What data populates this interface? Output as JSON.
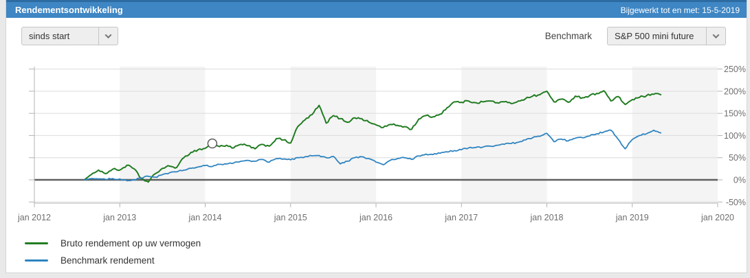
{
  "panel": {
    "title": "Rendementsontwikkeling",
    "updated_label": "Bijgewerkt tot en met: 15-5-2019"
  },
  "controls": {
    "period_select": {
      "value": "sinds start"
    },
    "benchmark_label": "Benchmark",
    "benchmark_select": {
      "value": "S&P 500 mini future"
    }
  },
  "chart_data": {
    "type": "line",
    "title": "Rendementsontwikkeling",
    "xlabel": "",
    "ylabel": "",
    "ylim": [
      -50,
      250
    ],
    "grid": true,
    "legend_position": "bottom-left",
    "x_ticks": [
      "jan 2012",
      "jan 2013",
      "jan 2014",
      "jan 2015",
      "jan 2016",
      "jan 2017",
      "jan 2018",
      "jan 2019",
      "jan 2020"
    ],
    "y_ticks": [
      250,
      200,
      150,
      100,
      50,
      0,
      -50
    ],
    "y_tick_suffix": "%",
    "x_unit": "months_since_jan_2012",
    "x_range_months": [
      0,
      96
    ],
    "band_color": "#f4f4f4",
    "shaded_month_ranges": [
      [
        12,
        24
      ],
      [
        36,
        48
      ],
      [
        60,
        72
      ],
      [
        84,
        96
      ]
    ],
    "zero_line_color": "#606060",
    "series": [
      {
        "name": "Bruto rendement op uw vermogen",
        "color": "#217c21",
        "points": [
          [
            7,
            0
          ],
          [
            8,
            12
          ],
          [
            9,
            22
          ],
          [
            10,
            14
          ],
          [
            11,
            24
          ],
          [
            12,
            22
          ],
          [
            13,
            33
          ],
          [
            14,
            25
          ],
          [
            15,
            3
          ],
          [
            16,
            -5
          ],
          [
            17,
            14
          ],
          [
            18,
            26
          ],
          [
            19,
            31
          ],
          [
            20,
            28
          ],
          [
            21,
            50
          ],
          [
            22,
            62
          ],
          [
            23,
            68
          ],
          [
            24,
            71
          ],
          [
            25,
            82
          ],
          [
            26,
            75
          ],
          [
            27,
            78
          ],
          [
            28,
            72
          ],
          [
            29,
            80
          ],
          [
            30,
            77
          ],
          [
            31,
            70
          ],
          [
            32,
            80
          ],
          [
            33,
            76
          ],
          [
            34,
            93
          ],
          [
            35,
            90
          ],
          [
            36,
            83
          ],
          [
            37,
            120
          ],
          [
            38,
            135
          ],
          [
            39,
            147
          ],
          [
            40,
            168
          ],
          [
            41,
            128
          ],
          [
            42,
            145
          ],
          [
            43,
            138
          ],
          [
            44,
            130
          ],
          [
            45,
            140
          ],
          [
            46,
            138
          ],
          [
            47,
            130
          ],
          [
            48,
            124
          ],
          [
            49,
            118
          ],
          [
            50,
            125
          ],
          [
            51,
            123
          ],
          [
            52,
            120
          ],
          [
            53,
            114
          ],
          [
            54,
            137
          ],
          [
            55,
            145
          ],
          [
            56,
            142
          ],
          [
            57,
            148
          ],
          [
            58,
            163
          ],
          [
            59,
            176
          ],
          [
            60,
            175
          ],
          [
            61,
            178
          ],
          [
            62,
            174
          ],
          [
            63,
            176
          ],
          [
            64,
            178
          ],
          [
            65,
            174
          ],
          [
            66,
            176
          ],
          [
            67,
            172
          ],
          [
            68,
            178
          ],
          [
            69,
            183
          ],
          [
            70,
            189
          ],
          [
            71,
            192
          ],
          [
            72,
            200
          ],
          [
            73,
            176
          ],
          [
            74,
            182
          ],
          [
            75,
            175
          ],
          [
            76,
            189
          ],
          [
            77,
            185
          ],
          [
            78,
            190
          ],
          [
            79,
            195
          ],
          [
            80,
            201
          ],
          [
            81,
            178
          ],
          [
            82,
            188
          ],
          [
            83,
            170
          ],
          [
            84,
            181
          ],
          [
            85,
            186
          ],
          [
            86,
            190
          ],
          [
            87,
            193
          ],
          [
            88,
            192
          ]
        ]
      },
      {
        "name": "Benchmark rendement",
        "color": "#2e84c0",
        "points": [
          [
            7,
            0
          ],
          [
            8,
            3
          ],
          [
            9,
            2
          ],
          [
            10,
            1
          ],
          [
            11,
            3
          ],
          [
            12,
            2
          ],
          [
            13,
            -2
          ],
          [
            14,
            0
          ],
          [
            15,
            4
          ],
          [
            16,
            8
          ],
          [
            17,
            6
          ],
          [
            18,
            12
          ],
          [
            19,
            16
          ],
          [
            20,
            18
          ],
          [
            21,
            22
          ],
          [
            22,
            26
          ],
          [
            23,
            29
          ],
          [
            24,
            32
          ],
          [
            25,
            30
          ],
          [
            26,
            35
          ],
          [
            27,
            36
          ],
          [
            28,
            38
          ],
          [
            29,
            42
          ],
          [
            30,
            44
          ],
          [
            31,
            42
          ],
          [
            32,
            46
          ],
          [
            33,
            40
          ],
          [
            34,
            48
          ],
          [
            35,
            47
          ],
          [
            36,
            45
          ],
          [
            37,
            50
          ],
          [
            38,
            52
          ],
          [
            39,
            54
          ],
          [
            40,
            55
          ],
          [
            41,
            50
          ],
          [
            42,
            53
          ],
          [
            43,
            36
          ],
          [
            44,
            42
          ],
          [
            45,
            50
          ],
          [
            46,
            52
          ],
          [
            47,
            48
          ],
          [
            48,
            40
          ],
          [
            49,
            34
          ],
          [
            50,
            44
          ],
          [
            51,
            48
          ],
          [
            52,
            50
          ],
          [
            53,
            46
          ],
          [
            54,
            54
          ],
          [
            55,
            58
          ],
          [
            56,
            57
          ],
          [
            57,
            60
          ],
          [
            58,
            63
          ],
          [
            59,
            66
          ],
          [
            60,
            68
          ],
          [
            61,
            72
          ],
          [
            62,
            73
          ],
          [
            63,
            74
          ],
          [
            64,
            76
          ],
          [
            65,
            78
          ],
          [
            66,
            80
          ],
          [
            67,
            82
          ],
          [
            68,
            85
          ],
          [
            69,
            90
          ],
          [
            70,
            95
          ],
          [
            71,
            98
          ],
          [
            72,
            105
          ],
          [
            73,
            86
          ],
          [
            74,
            92
          ],
          [
            75,
            88
          ],
          [
            76,
            94
          ],
          [
            77,
            95
          ],
          [
            78,
            99
          ],
          [
            79,
            104
          ],
          [
            80,
            108
          ],
          [
            81,
            112
          ],
          [
            82,
            92
          ],
          [
            83,
            70
          ],
          [
            84,
            91
          ],
          [
            85,
            100
          ],
          [
            86,
            104
          ],
          [
            87,
            112
          ],
          [
            88,
            106
          ]
        ]
      }
    ],
    "marker": {
      "series": "Bruto rendement op uw vermogen",
      "month": 25,
      "value": 82
    }
  },
  "legend": {
    "items": [
      {
        "label": "Bruto rendement op uw vermogen",
        "color": "#217c21"
      },
      {
        "label": "Benchmark rendement",
        "color": "#2e84c0"
      }
    ]
  }
}
